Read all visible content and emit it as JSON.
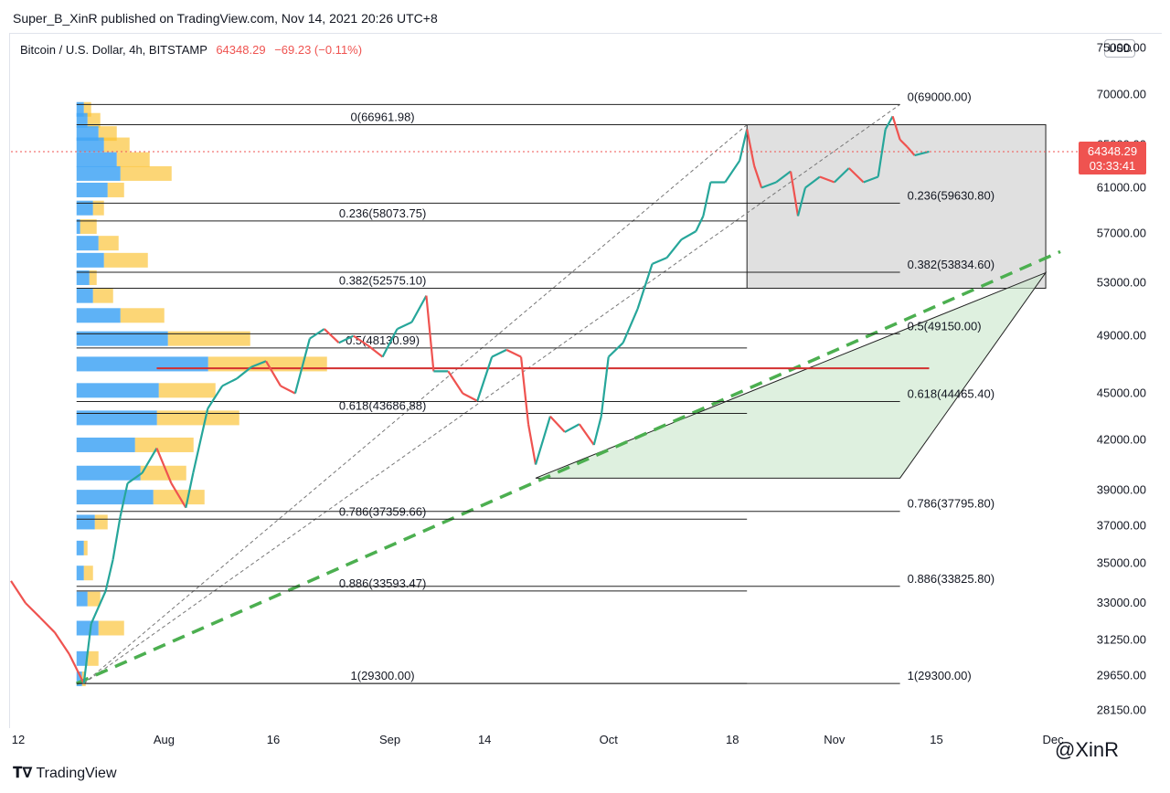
{
  "header": {
    "publisher_line": "Super_B_XinR published on TradingView.com, Nov 14, 2021 20:26 UTC+8",
    "symbol_name": "Bitcoin / U.S. Dollar, 4h, BITSTAMP",
    "last_price": "64348.29",
    "change": "−69.23 (−0.11%)",
    "currency_button": "USD"
  },
  "price_tag": {
    "price": "64348.29",
    "countdown": "03:33:41"
  },
  "footer": {
    "brand": "TradingView",
    "watermark": "@XinR"
  },
  "colors": {
    "up": "#26a69a",
    "down": "#ef5350",
    "price_tag": "#ef5350",
    "trend_dashed": "#4caf50",
    "poc_line": "#d32f2f",
    "vp_blue": "#42a5f5",
    "vp_yellow": "#fbc02d",
    "box_gray": "#9e9e9e",
    "box_green": "#c8e6c9"
  },
  "chart_data": {
    "type": "line",
    "title": "Bitcoin / U.S. Dollar, 4h, BITSTAMP",
    "y_axis": {
      "scale": "log",
      "range": [
        27500,
        76500
      ],
      "ticks": [
        "75000.00",
        "70000.00",
        "65000.00",
        "61000.00",
        "57000.00",
        "53000.00",
        "49000.00",
        "45000.00",
        "42000.00",
        "39000.00",
        "37000.00",
        "35000.00",
        "33000.00",
        "31250.00",
        "29650.00",
        "28150.00"
      ]
    },
    "x_axis": {
      "range": [
        "2021-07-11",
        "2021-12-02"
      ],
      "ticks": [
        {
          "date": "2021-07-12",
          "label": "12"
        },
        {
          "date": "2021-08-01",
          "label": "Aug"
        },
        {
          "date": "2021-08-16",
          "label": "16"
        },
        {
          "date": "2021-09-01",
          "label": "Sep"
        },
        {
          "date": "2021-09-14",
          "label": "14"
        },
        {
          "date": "2021-10-01",
          "label": "Oct"
        },
        {
          "date": "2021-10-18",
          "label": "18"
        },
        {
          "date": "2021-11-01",
          "label": "Nov"
        },
        {
          "date": "2021-11-15",
          "label": "15"
        },
        {
          "date": "2021-12-01",
          "label": "Dec"
        }
      ]
    },
    "series": [
      {
        "values": [
          [
            "2021-07-11",
            34100
          ],
          [
            "2021-07-13",
            33000
          ],
          [
            "2021-07-15",
            32300
          ],
          [
            "2021-07-17",
            31600
          ],
          [
            "2021-07-19",
            30600
          ],
          [
            "2021-07-21",
            29300
          ],
          [
            "2021-07-22",
            32000
          ],
          [
            "2021-07-24",
            33600
          ],
          [
            "2021-07-25",
            35200
          ],
          [
            "2021-07-26",
            37500
          ],
          [
            "2021-07-27",
            39400
          ],
          [
            "2021-07-29",
            40000
          ],
          [
            "2021-07-31",
            41500
          ],
          [
            "2021-08-02",
            39400
          ],
          [
            "2021-08-04",
            38000
          ],
          [
            "2021-08-05",
            40000
          ],
          [
            "2021-08-07",
            44000
          ],
          [
            "2021-08-09",
            45500
          ],
          [
            "2021-08-11",
            46000
          ],
          [
            "2021-08-13",
            46800
          ],
          [
            "2021-08-15",
            47200
          ],
          [
            "2021-08-17",
            45500
          ],
          [
            "2021-08-19",
            45000
          ],
          [
            "2021-08-21",
            48800
          ],
          [
            "2021-08-23",
            49500
          ],
          [
            "2021-08-25",
            48500
          ],
          [
            "2021-08-27",
            49000
          ],
          [
            "2021-08-29",
            48300
          ],
          [
            "2021-08-31",
            47500
          ],
          [
            "2021-09-02",
            49500
          ],
          [
            "2021-09-04",
            50000
          ],
          [
            "2021-09-06",
            52000
          ],
          [
            "2021-09-07",
            46500
          ],
          [
            "2021-09-09",
            46500
          ],
          [
            "2021-09-11",
            45000
          ],
          [
            "2021-09-13",
            44500
          ],
          [
            "2021-09-15",
            47500
          ],
          [
            "2021-09-17",
            48000
          ],
          [
            "2021-09-19",
            47500
          ],
          [
            "2021-09-20",
            43000
          ],
          [
            "2021-09-21",
            40500
          ],
          [
            "2021-09-23",
            43500
          ],
          [
            "2021-09-25",
            42500
          ],
          [
            "2021-09-27",
            43000
          ],
          [
            "2021-09-29",
            41700
          ],
          [
            "2021-09-30",
            43500
          ],
          [
            "2021-10-01",
            47500
          ],
          [
            "2021-10-03",
            48500
          ],
          [
            "2021-10-05",
            51000
          ],
          [
            "2021-10-07",
            54500
          ],
          [
            "2021-10-09",
            55000
          ],
          [
            "2021-10-11",
            56500
          ],
          [
            "2021-10-13",
            57200
          ],
          [
            "2021-10-14",
            58500
          ],
          [
            "2021-10-15",
            61500
          ],
          [
            "2021-10-17",
            61500
          ],
          [
            "2021-10-19",
            63500
          ],
          [
            "2021-10-20",
            66500
          ],
          [
            "2021-10-21",
            63000
          ],
          [
            "2021-10-22",
            61000
          ],
          [
            "2021-10-24",
            61500
          ],
          [
            "2021-10-26",
            62500
          ],
          [
            "2021-10-27",
            58500
          ],
          [
            "2021-10-28",
            61000
          ],
          [
            "2021-10-30",
            62000
          ],
          [
            "2021-11-01",
            61500
          ],
          [
            "2021-11-03",
            62800
          ],
          [
            "2021-11-05",
            61500
          ],
          [
            "2021-11-07",
            62000
          ],
          [
            "2021-11-08",
            66500
          ],
          [
            "2021-11-09",
            67800
          ],
          [
            "2021-11-10",
            65500
          ],
          [
            "2021-11-11",
            64800
          ],
          [
            "2021-11-12",
            64000
          ],
          [
            "2021-11-14",
            64348
          ]
        ]
      }
    ],
    "fib_left": {
      "start": "2021-07-20",
      "end": "2021-10-20",
      "levels": [
        {
          "label": "0(66961.98)",
          "price": 66961.98
        },
        {
          "label": "0.236(58073.75)",
          "price": 58073.75
        },
        {
          "label": "0.382(52575.10)",
          "price": 52575.1
        },
        {
          "label": "0.5(48130.99)",
          "price": 48130.99
        },
        {
          "label": "0.618(43686.88)",
          "price": 43686.88
        },
        {
          "label": "0.786(37359.66)",
          "price": 37359.66
        },
        {
          "label": "0.886(33593.47)",
          "price": 33593.47
        },
        {
          "label": "1(29300.00)",
          "price": 29300.0
        }
      ]
    },
    "fib_right": {
      "start": "2021-07-20",
      "end": "2021-11-10",
      "levels": [
        {
          "label": "0(69000.00)",
          "price": 69000
        },
        {
          "label": "0.236(59630.80)",
          "price": 59630.8
        },
        {
          "label": "0.382(53834.60)",
          "price": 53834.6
        },
        {
          "label": "0.5(49150.00)",
          "price": 49150
        },
        {
          "label": "0.618(44465.40)",
          "price": 44465.4
        },
        {
          "label": "0.786(37795.80)",
          "price": 37795.8
        },
        {
          "label": "0.886(33825.80)",
          "price": 33825.8
        },
        {
          "label": "1(29300.00)",
          "price": 29300
        }
      ]
    },
    "poc_price": 46700,
    "trendline": {
      "from": [
        "2021-07-20",
        29300
      ],
      "to": [
        "2021-12-02",
        55500
      ]
    },
    "gray_box": {
      "from": [
        "2021-10-20",
        66961.98
      ],
      "to": [
        "2021-11-30",
        52575.1
      ]
    },
    "green_triangle": [
      [
        "2021-09-21",
        39700
      ],
      [
        "2021-11-30",
        53800
      ],
      [
        "2021-11-10",
        39700
      ]
    ],
    "diag_lines": [
      {
        "from": [
          "2021-07-21",
          29300
        ],
        "to": [
          "2021-10-20",
          66961.98
        ]
      },
      {
        "from": [
          "2021-07-21",
          29300
        ],
        "to": [
          "2021-11-10",
          69000
        ]
      }
    ],
    "volume_profile": [
      {
        "price": 68500,
        "blue": 8,
        "yellow": 8
      },
      {
        "price": 67400,
        "blue": 12,
        "yellow": 14
      },
      {
        "price": 66100,
        "blue": 24,
        "yellow": 20
      },
      {
        "price": 65000,
        "blue": 30,
        "yellow": 28
      },
      {
        "price": 63600,
        "blue": 44,
        "yellow": 36
      },
      {
        "price": 62300,
        "blue": 48,
        "yellow": 56
      },
      {
        "price": 60800,
        "blue": 34,
        "yellow": 18
      },
      {
        "price": 59200,
        "blue": 18,
        "yellow": 12
      },
      {
        "price": 57600,
        "blue": 4,
        "yellow": 18
      },
      {
        "price": 56200,
        "blue": 24,
        "yellow": 22
      },
      {
        "price": 54800,
        "blue": 30,
        "yellow": 48
      },
      {
        "price": 53400,
        "blue": 14,
        "yellow": 8
      },
      {
        "price": 52000,
        "blue": 18,
        "yellow": 22
      },
      {
        "price": 50500,
        "blue": 48,
        "yellow": 48
      },
      {
        "price": 48800,
        "blue": 100,
        "yellow": 90
      },
      {
        "price": 47000,
        "blue": 144,
        "yellow": 130
      },
      {
        "price": 45200,
        "blue": 90,
        "yellow": 62
      },
      {
        "price": 43400,
        "blue": 88,
        "yellow": 90
      },
      {
        "price": 41700,
        "blue": 64,
        "yellow": 64
      },
      {
        "price": 40000,
        "blue": 70,
        "yellow": 50
      },
      {
        "price": 38600,
        "blue": 84,
        "yellow": 56
      },
      {
        "price": 37200,
        "blue": 20,
        "yellow": 14
      },
      {
        "price": 35800,
        "blue": 8,
        "yellow": 4
      },
      {
        "price": 34500,
        "blue": 8,
        "yellow": 10
      },
      {
        "price": 33200,
        "blue": 12,
        "yellow": 14
      },
      {
        "price": 31800,
        "blue": 24,
        "yellow": 28
      },
      {
        "price": 30400,
        "blue": 12,
        "yellow": 12
      },
      {
        "price": 29500,
        "blue": 6,
        "yellow": 4
      }
    ]
  }
}
